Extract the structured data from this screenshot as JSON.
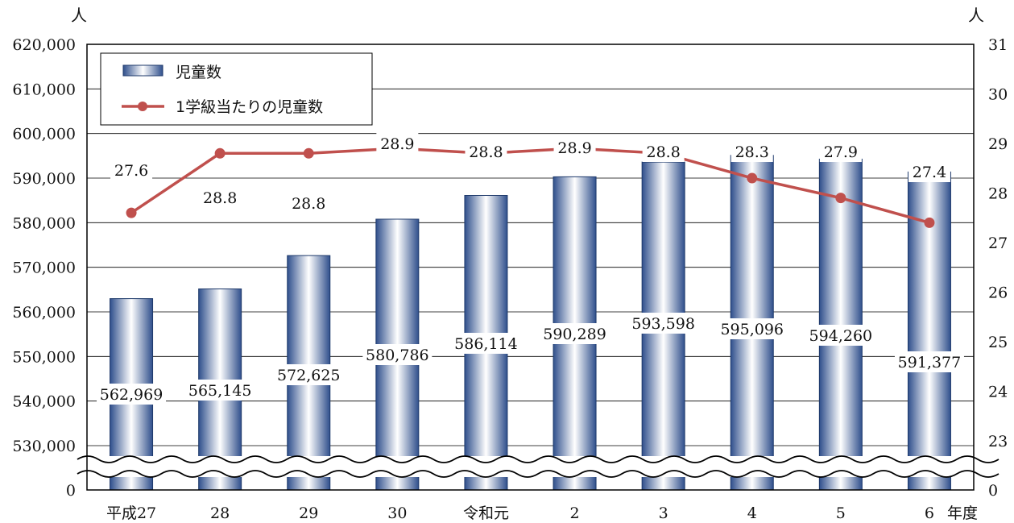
{
  "chart_data": {
    "type": "bar+line",
    "categories": [
      "平成27",
      "28",
      "29",
      "30",
      "令和元",
      "2",
      "3",
      "4",
      "5",
      "6"
    ],
    "x_unit": "年度",
    "y_left": {
      "unit": "人",
      "ticks": [
        "0",
        "530,000",
        "540,000",
        "550,000",
        "560,000",
        "570,000",
        "580,000",
        "590,000",
        "600,000",
        "610,000",
        "620,000"
      ],
      "range": [
        530000,
        620000
      ],
      "axis_break": true
    },
    "y_right": {
      "unit": "人",
      "ticks": [
        "0",
        "23",
        "24",
        "25",
        "26",
        "27",
        "28",
        "29",
        "30",
        "31"
      ],
      "range": [
        23,
        31
      ],
      "axis_break": true
    },
    "series": [
      {
        "name": "児童数",
        "type": "bar",
        "axis": "left",
        "color": "#3e5f9e",
        "values": [
          562969,
          565145,
          572625,
          580786,
          586114,
          590289,
          593598,
          595096,
          594260,
          591377
        ],
        "labels": [
          "562,969",
          "565,145",
          "572,625",
          "580,786",
          "586,114",
          "590,289",
          "593,598",
          "595,096",
          "594,260",
          "591,377"
        ]
      },
      {
        "name": "1学級当たりの児童数",
        "type": "line",
        "axis": "right",
        "color": "#c0504d",
        "values": [
          27.6,
          28.8,
          28.8,
          28.9,
          28.8,
          28.9,
          28.8,
          28.3,
          27.9,
          27.4
        ],
        "labels": [
          "27.6",
          "28.8",
          "28.8",
          "28.9",
          "28.8",
          "28.9",
          "28.8",
          "28.3",
          "27.9",
          "27.4"
        ]
      }
    ],
    "grid": true,
    "legend": "top-left"
  }
}
